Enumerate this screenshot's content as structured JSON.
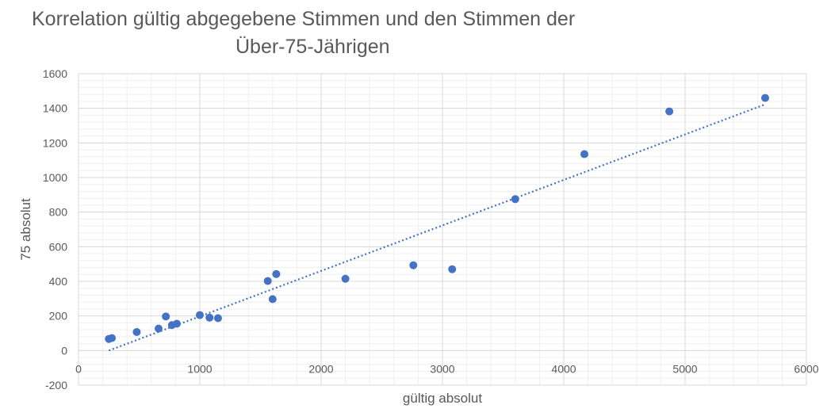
{
  "chart_data": {
    "type": "scatter",
    "title_line1": "Korrelation gültig abgegebene Stimmen und den Stimmen der",
    "title_line2": "Über-75-Jährigen",
    "xlabel": "gültig absolut",
    "ylabel": "75 absolut",
    "xlim": [
      0,
      6000
    ],
    "ylim": [
      -200,
      1600
    ],
    "x_ticks": [
      0,
      1000,
      2000,
      3000,
      4000,
      5000,
      6000
    ],
    "y_ticks": [
      -200,
      0,
      200,
      400,
      600,
      800,
      1000,
      1200,
      1400,
      1600
    ],
    "grid": true,
    "marker_color": "#4472C4",
    "trendline": {
      "type": "linear",
      "style": "dotted",
      "color": "#4472C4",
      "from": [
        250,
        0
      ],
      "to": [
        5650,
        1420
      ]
    },
    "points": [
      [
        250,
        67
      ],
      [
        275,
        72
      ],
      [
        480,
        107
      ],
      [
        660,
        127
      ],
      [
        720,
        197
      ],
      [
        770,
        147
      ],
      [
        810,
        155
      ],
      [
        1000,
        205
      ],
      [
        1080,
        190
      ],
      [
        1150,
        187
      ],
      [
        1560,
        402
      ],
      [
        1600,
        297
      ],
      [
        1630,
        442
      ],
      [
        2200,
        415
      ],
      [
        2760,
        493
      ],
      [
        3080,
        470
      ],
      [
        3600,
        875
      ],
      [
        4170,
        1135
      ],
      [
        4870,
        1382
      ],
      [
        5660,
        1460
      ]
    ]
  }
}
